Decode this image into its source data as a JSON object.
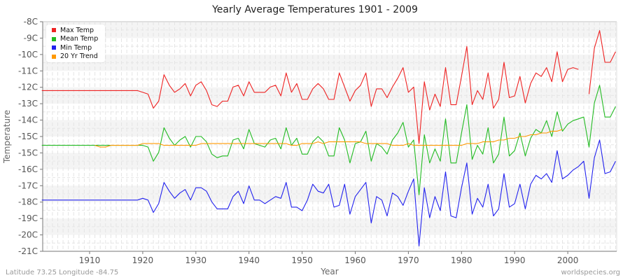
{
  "chart_data": {
    "type": "line",
    "title": "Yearly Average Temperatures 1901 - 2009",
    "xlabel": "Year",
    "ylabel": "Temperature",
    "ylim": [
      -21,
      -8
    ],
    "xlim": [
      1901,
      2009
    ],
    "grid": true,
    "legend_position": "top-left",
    "yticks": [
      "-8C",
      "-9C",
      "-10C",
      "-11C",
      "-12C",
      "-13C",
      "-14C",
      "-15C",
      "-15C",
      "-16C",
      "-17C",
      "-18C",
      "-19C",
      "-20C",
      "-21C"
    ],
    "xticks": [
      1910,
      1920,
      1930,
      1940,
      1950,
      1960,
      1970,
      1980,
      1990,
      2000
    ],
    "x_start": 1901,
    "series": [
      {
        "name": "Max Temp",
        "color": "#ee2222",
        "values": [
          -11.9,
          -11.9,
          -11.9,
          -11.9,
          -11.9,
          -11.9,
          -11.9,
          -11.9,
          -11.9,
          -11.9,
          -11.9,
          -11.9,
          -11.9,
          -11.9,
          -11.9,
          -11.9,
          -11.9,
          -11.9,
          -11.9,
          -12.0,
          -12.1,
          -12.9,
          -12.5,
          -11.0,
          -11.6,
          -12.0,
          -11.8,
          -11.5,
          -12.2,
          -11.6,
          -11.4,
          -11.9,
          -12.7,
          -12.8,
          -12.5,
          -12.5,
          -11.7,
          -11.6,
          -12.2,
          -11.4,
          -12.0,
          -12.0,
          -12.0,
          -11.7,
          -11.6,
          -12.2,
          -10.9,
          -12.0,
          -11.5,
          -12.4,
          -12.4,
          -11.8,
          -11.5,
          -11.8,
          -12.4,
          -12.4,
          -10.9,
          -11.7,
          -12.5,
          -11.9,
          -11.6,
          -10.9,
          -12.8,
          -11.8,
          -11.8,
          -12.3,
          -11.7,
          -11.2,
          -10.6,
          -12.0,
          -11.7,
          -14.9,
          -11.4,
          -13.0,
          -12.1,
          -12.8,
          -10.6,
          -12.7,
          -12.7,
          -11.1,
          -9.4,
          -12.7,
          -11.9,
          -12.4,
          -10.9,
          -12.9,
          -12.4,
          -10.3,
          -12.3,
          -12.2,
          -11.1,
          -12.6,
          -11.5,
          -10.9,
          -11.1,
          -10.6,
          -11.4,
          -9.7,
          -11.4,
          -10.7,
          -10.6,
          -10.7,
          null,
          -12.1,
          -9.5,
          -8.5,
          -10.3,
          -10.3,
          -9.7
        ]
      },
      {
        "name": "Mean Temp",
        "color": "#22bb22",
        "values": [
          -15.0,
          -15.0,
          -15.0,
          -15.0,
          -15.0,
          -15.0,
          -15.0,
          -15.0,
          -15.0,
          -15.0,
          -15.0,
          -15.0,
          -15.0,
          -15.0,
          -15.0,
          -15.0,
          -15.0,
          -15.0,
          -15.0,
          -15.0,
          -15.1,
          -15.9,
          -15.4,
          -14.0,
          -14.6,
          -15.0,
          -14.7,
          -14.5,
          -15.1,
          -14.5,
          -14.5,
          -14.8,
          -15.5,
          -15.7,
          -15.6,
          -15.6,
          -14.7,
          -14.6,
          -15.2,
          -14.1,
          -14.9,
          -15.0,
          -15.1,
          -14.7,
          -14.6,
          -15.2,
          -14.0,
          -15.0,
          -14.6,
          -15.5,
          -15.5,
          -14.8,
          -14.5,
          -14.8,
          -15.6,
          -15.6,
          -14.0,
          -14.7,
          -16.0,
          -14.9,
          -14.8,
          -14.2,
          -15.9,
          -14.9,
          -15.1,
          -15.5,
          -14.7,
          -14.3,
          -13.7,
          -15.1,
          -14.7,
          -17.8,
          -14.4,
          -16.0,
          -15.2,
          -15.9,
          -13.5,
          -16.0,
          -16.0,
          -14.3,
          -12.7,
          -15.8,
          -15.0,
          -15.5,
          -14.0,
          -16.0,
          -15.5,
          -13.4,
          -15.6,
          -15.3,
          -14.3,
          -15.6,
          -14.6,
          -14.1,
          -14.3,
          -13.6,
          -14.5,
          -13.1,
          -14.2,
          -13.8,
          -13.6,
          -13.5,
          -13.4,
          -15.1,
          -12.6,
          -11.6,
          -13.4,
          -13.4,
          -12.8
        ]
      },
      {
        "name": "Min Temp",
        "color": "#2222ee",
        "values": [
          -18.1,
          -18.1,
          -18.1,
          -18.1,
          -18.1,
          -18.1,
          -18.1,
          -18.1,
          -18.1,
          -18.1,
          -18.1,
          -18.1,
          -18.1,
          -18.1,
          -18.1,
          -18.1,
          -18.1,
          -18.1,
          -18.1,
          -18.0,
          -18.1,
          -18.8,
          -18.3,
          -17.1,
          -17.6,
          -18.0,
          -17.7,
          -17.5,
          -18.1,
          -17.4,
          -17.4,
          -17.6,
          -18.2,
          -18.6,
          -18.6,
          -18.6,
          -17.9,
          -17.6,
          -18.3,
          -17.3,
          -18.1,
          -18.1,
          -18.3,
          -18.1,
          -17.9,
          -18.0,
          -17.1,
          -18.5,
          -18.5,
          -18.7,
          -18.1,
          -17.2,
          -17.6,
          -17.7,
          -17.2,
          -18.5,
          -18.4,
          -17.2,
          -18.9,
          -17.9,
          -17.5,
          -17.1,
          -19.4,
          -17.9,
          -18.1,
          -19.0,
          -17.7,
          -17.9,
          -18.4,
          -17.6,
          -16.9,
          -20.7,
          -17.4,
          -19.1,
          -17.9,
          -18.7,
          -16.5,
          -19.0,
          -19.1,
          -17.4,
          -16.0,
          -18.9,
          -18.0,
          -18.5,
          -17.2,
          -19.0,
          -18.6,
          -16.6,
          -18.5,
          -18.3,
          -17.2,
          -18.6,
          -17.2,
          -16.7,
          -16.9,
          -16.6,
          -17.1,
          -15.3,
          -16.9,
          -16.7,
          -16.4,
          -16.2,
          -15.9,
          -18.0,
          -15.7,
          -14.7,
          -16.6,
          -16.5,
          -15.9
        ]
      },
      {
        "name": "20 Yr Trend",
        "color": "#ff9900",
        "values": [
          null,
          null,
          null,
          null,
          null,
          null,
          null,
          null,
          null,
          null,
          -15.0,
          -15.1,
          -15.1,
          -15.0,
          -15.0,
          -15.0,
          -15.0,
          -15.0,
          -15.0,
          -14.9,
          -14.9,
          -14.9,
          -14.9,
          -15.0,
          -15.0,
          -15.0,
          -15.0,
          -15.0,
          -15.0,
          -15.0,
          -14.9,
          -14.9,
          -14.9,
          -14.9,
          -14.9,
          -14.9,
          -14.9,
          -14.9,
          -14.9,
          -14.9,
          -14.9,
          -14.9,
          -14.9,
          -14.9,
          -14.9,
          -14.9,
          -14.9,
          -15.0,
          -15.0,
          -14.9,
          -14.9,
          -14.9,
          -14.8,
          -14.9,
          -14.8,
          -14.8,
          -14.8,
          -14.8,
          -14.8,
          -14.8,
          -14.8,
          -14.9,
          -14.9,
          -14.9,
          -14.9,
          -14.9,
          -15.0,
          -15.0,
          -15.0,
          -14.9,
          -15.0,
          -15.0,
          -15.0,
          -15.0,
          -15.0,
          -15.0,
          -15.0,
          -15.0,
          -15.0,
          -15.0,
          -14.9,
          -14.9,
          -14.9,
          -14.8,
          -14.8,
          -14.8,
          -14.7,
          -14.7,
          -14.6,
          -14.6,
          -14.5,
          -14.5,
          -14.4,
          -14.4,
          -14.3,
          -14.3,
          -14.2,
          -14.2,
          -14.1,
          null,
          null,
          null,
          null,
          null,
          null,
          null,
          null,
          null,
          null
        ]
      }
    ]
  },
  "legend": [
    {
      "label": "Max Temp",
      "color": "#ee2222"
    },
    {
      "label": "Mean Temp",
      "color": "#22bb22"
    },
    {
      "label": "Min Temp",
      "color": "#2222ee"
    },
    {
      "label": "20 Yr Trend",
      "color": "#ff9900"
    }
  ],
  "footer": {
    "coords": "Latitude 73.25 Longitude -84.75",
    "source": "worldspecies.org"
  }
}
